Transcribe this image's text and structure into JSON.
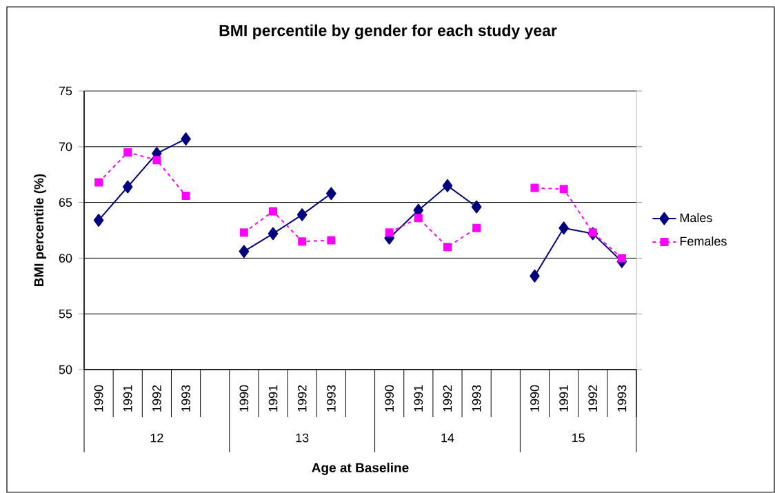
{
  "chart_data": {
    "type": "line",
    "title": "BMI percentile by gender for each study year",
    "xlabel": "Age at Baseline",
    "ylabel": "BMI percentile (%)",
    "categories": [
      "1990",
      "1991",
      "1992",
      "1993",
      null,
      "1990",
      "1991",
      "1992",
      "1993",
      null,
      "1990",
      "1991",
      "1992",
      "1993",
      null,
      "1990",
      "1991",
      "1992",
      "1993"
    ],
    "annotations": [
      "12",
      "13",
      "14",
      "15"
    ],
    "series": [
      {
        "name": "Males",
        "color": "#000080",
        "marker": "diamond",
        "line_style": "solid",
        "values": [
          63.4,
          66.4,
          69.4,
          70.7,
          null,
          60.6,
          62.2,
          63.9,
          65.8,
          null,
          61.8,
          64.3,
          66.5,
          64.6,
          null,
          58.4,
          62.7,
          62.2,
          59.7
        ]
      },
      {
        "name": "Females",
        "color": "#ff00ff",
        "marker": "square",
        "line_style": "dashed",
        "values": [
          66.8,
          69.5,
          68.8,
          65.6,
          null,
          62.3,
          64.2,
          61.5,
          61.6,
          null,
          62.3,
          63.6,
          61.0,
          62.7,
          null,
          66.3,
          66.2,
          62.3,
          60.0
        ]
      }
    ],
    "ylim": [
      50,
      75
    ],
    "yticks": [
      50,
      55,
      60,
      65,
      70,
      75
    ],
    "grid": "y",
    "legend": "right"
  }
}
